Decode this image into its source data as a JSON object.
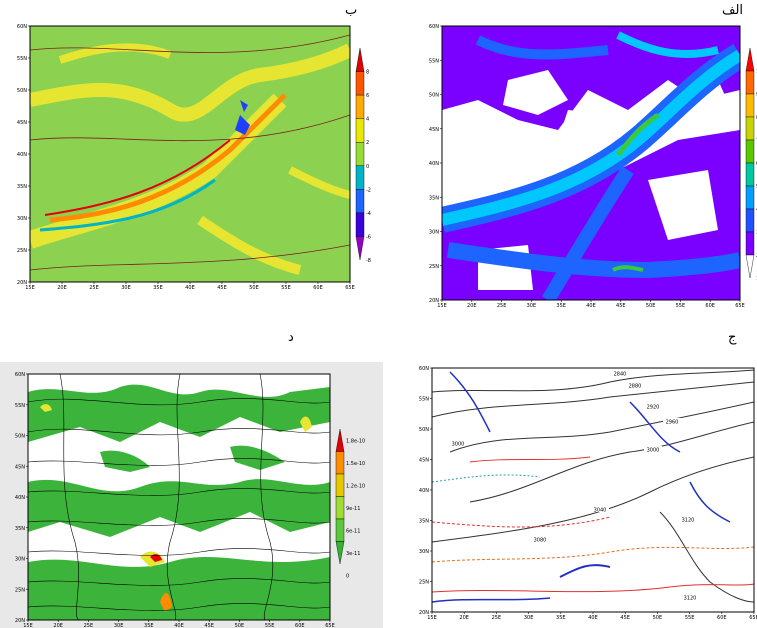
{
  "labels": {
    "top_right": "الف",
    "top_left": "ب",
    "bottom_right": "ج",
    "bottom_left": "د"
  },
  "chart_data": [
    {
      "panel": "الف",
      "type": "heatmap",
      "x_ticks": [
        "15E",
        "20E",
        "25E",
        "30E",
        "35E",
        "40E",
        "45E",
        "50E",
        "55E",
        "60E",
        "65E"
      ],
      "y_ticks": [
        "20N",
        "25N",
        "30N",
        "35N",
        "40N",
        "45N",
        "50N",
        "55N",
        "60N"
      ],
      "xlim": [
        15,
        65
      ],
      "ylim": [
        20,
        60
      ],
      "colorbar": {
        "ticks": [
          "10",
          "9",
          "8",
          "7",
          "6",
          "5",
          "4",
          "3",
          "2",
          "1"
        ],
        "colors": [
          "#ff0000",
          "#ff6a00",
          "#ffbb00",
          "#c8d400",
          "#5ac800",
          "#00c8a0",
          "#00a0ff",
          "#2050ff",
          "#7a00ff",
          "#ffffff"
        ]
      },
      "colors": {
        "band_blue": "#1e64ff",
        "band_cyan": "#00c8ff",
        "band_purple": "#7a00ff",
        "band_green": "#3cc83c",
        "background": "#ffffff"
      }
    },
    {
      "panel": "ب",
      "type": "heatmap",
      "x_ticks": [
        "15E",
        "20E",
        "25E",
        "30E",
        "35E",
        "40E",
        "45E",
        "50E",
        "55E",
        "60E",
        "65E"
      ],
      "y_ticks": [
        "20N",
        "25N",
        "30N",
        "35N",
        "40N",
        "45N",
        "50N",
        "55N",
        "60N"
      ],
      "xlim": [
        15,
        65
      ],
      "ylim": [
        20,
        60
      ],
      "colorbar": {
        "ticks": [
          "8",
          "6",
          "4",
          "2",
          "0",
          "-2",
          "-4",
          "-6",
          "-8"
        ],
        "colors": [
          "#e00000",
          "#ff5500",
          "#ffaa00",
          "#e8e800",
          "#96dc32",
          "#00b4c8",
          "#1e64ff",
          "#3c00dc",
          "#9600c8"
        ]
      },
      "colors": {
        "background": "#8cd250",
        "yellow": "#e6e632",
        "orange": "#ff8c00",
        "red": "#e60000",
        "blue": "#2040ff"
      }
    },
    {
      "panel": "ج",
      "type": "line",
      "x_ticks": [
        "15E",
        "20E",
        "25E",
        "30E",
        "35E",
        "40E",
        "45E",
        "50E",
        "55E",
        "60E",
        "65E"
      ],
      "y_ticks": [
        "20N",
        "25N",
        "30N",
        "35N",
        "40N",
        "45N",
        "50N",
        "55N",
        "60N"
      ],
      "xlim": [
        15,
        65
      ],
      "ylim": [
        20,
        60
      ],
      "contour_labels": [
        "2840",
        "2880",
        "2920",
        "2960",
        "3000",
        "3000",
        "3040",
        "3080",
        "3120",
        "3120"
      ],
      "colors": {
        "contour": "#333333",
        "red": "#e03030",
        "blue": "#2030c0",
        "cyan": "#20a0a0",
        "orange": "#e07020"
      }
    },
    {
      "panel": "د",
      "type": "heatmap",
      "x_ticks": [
        "15E",
        "20E",
        "25E",
        "30E",
        "35E",
        "40E",
        "45E",
        "50E",
        "55E",
        "60E",
        "65E"
      ],
      "y_ticks": [
        "20N",
        "25N",
        "30N",
        "35N",
        "40N",
        "45N",
        "50N",
        "55N",
        "60N"
      ],
      "xlim": [
        15,
        65
      ],
      "ylim": [
        20,
        60
      ],
      "colorbar": {
        "ticks": [
          "1.8e-10",
          "1.5e-10",
          "1.2e-10",
          "9e-11",
          "6e-11",
          "3e-11",
          "0"
        ],
        "colors": [
          "#e60000",
          "#ff8c00",
          "#e6c800",
          "#a0dc32",
          "#5ac83c",
          "#32b432"
        ]
      },
      "colors": {
        "green": "#3cb43c",
        "yellow": "#e6e632",
        "orange": "#ff8c00",
        "red": "#e60000",
        "panel_bg": "#e8e8e8",
        "streamline": "#000000"
      }
    }
  ]
}
